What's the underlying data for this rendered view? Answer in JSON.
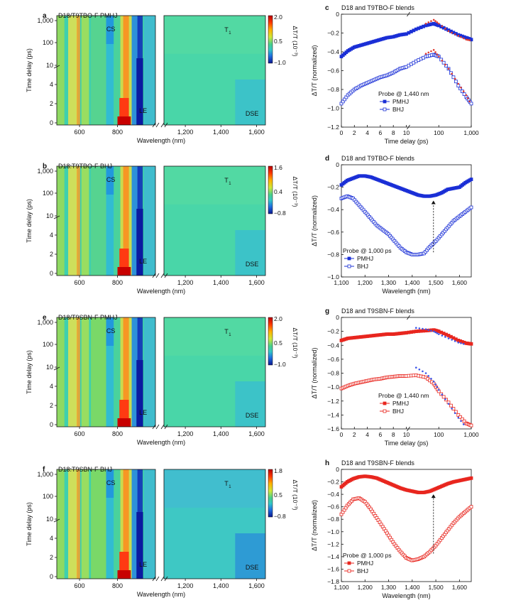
{
  "heatmap_panels": [
    {
      "letter": "a",
      "title": "D18/T9TBO-F PMHJ",
      "xlabel": "Wavelength (nm)",
      "ylabel": "Time delay (ps)",
      "x_ticks_left": [
        "600",
        "800"
      ],
      "x_ticks_right": [
        "1,200",
        "1,400",
        "1,600"
      ],
      "y_ticks_lower": [
        "0",
        "2",
        "4"
      ],
      "y_ticks_upper": [
        "10",
        "100",
        "1,000"
      ],
      "colorbar_label": "ΔT/T (10⁻³)",
      "colorbar_ticks": [
        "2.0",
        "0.5",
        "−1.0"
      ],
      "annotations": {
        "cs": "CS",
        "t1": "T",
        "t1_sub": "1",
        "le": "LE",
        "dse": "DSE"
      }
    },
    {
      "letter": "b",
      "title": "D18:T9TBO-F BHJ",
      "xlabel": "Wavelength (nm)",
      "ylabel": "Time delay (ps)",
      "x_ticks_left": [
        "600",
        "800"
      ],
      "x_ticks_right": [
        "1,200",
        "1,400",
        "1,600"
      ],
      "y_ticks_lower": [
        "0",
        "2",
        "4"
      ],
      "y_ticks_upper": [
        "10",
        "100",
        "1,000"
      ],
      "colorbar_label": "ΔT/T (10⁻³)",
      "colorbar_ticks": [
        "1.6",
        "0.4",
        "−0.8"
      ],
      "annotations": {
        "cs": "CS",
        "t1": "T",
        "t1_sub": "1",
        "le": "LE",
        "dse": "DSE"
      }
    },
    {
      "letter": "e",
      "title": "D18/T9SBN-F PMHJ",
      "xlabel": "Wavelength (nm)",
      "ylabel": "Time delay (ps)",
      "x_ticks_left": [
        "600",
        "800"
      ],
      "x_ticks_right": [
        "1,200",
        "1,400",
        "1,600"
      ],
      "y_ticks_lower": [
        "0",
        "2",
        "4"
      ],
      "y_ticks_upper": [
        "10",
        "100",
        "1,000"
      ],
      "colorbar_label": "ΔT/T (10⁻³)",
      "colorbar_ticks": [
        "2.0",
        "0.5",
        "−1.0"
      ],
      "annotations": {
        "cs": "CS",
        "t1": "T",
        "t1_sub": "1",
        "le": "LE",
        "dse": "DSE"
      }
    },
    {
      "letter": "f",
      "title": "D18:T9SBN-F BHJ",
      "xlabel": "Wavelength (nm)",
      "ylabel": "Time delay (ps)",
      "x_ticks_left": [
        "600",
        "800"
      ],
      "x_ticks_right": [
        "1,200",
        "1,400",
        "1,600"
      ],
      "y_ticks_lower": [
        "0",
        "2",
        "4"
      ],
      "y_ticks_upper": [
        "10",
        "100",
        "1,000"
      ],
      "colorbar_label": "ΔT/T (10⁻³)",
      "colorbar_ticks": [
        "1.8",
        "0.5",
        "−0.8"
      ],
      "annotations": {
        "cs": "CS",
        "t1": "T",
        "t1_sub": "1",
        "le": "LE",
        "dse": "DSE"
      }
    }
  ],
  "chart_data": [
    {
      "letter": "c",
      "type": "line",
      "title": "D18 and T9TBO-F blends",
      "xlabel": "Time delay (ps)",
      "ylabel": "ΔT/T (normalized)",
      "x_ticks_lower": [
        "0",
        "2",
        "4",
        "6",
        "8",
        "10"
      ],
      "x_ticks_upper": [
        "100",
        "1,000"
      ],
      "ylim": [
        -1.2,
        0.0
      ],
      "y_ticks": [
        "0",
        "−0.2",
        "−0.4",
        "−0.6",
        "−0.8",
        "−1.0",
        "−1.2"
      ],
      "legend_title": "Probe @ 1,440 nm",
      "series": [
        {
          "name": "PMHJ",
          "marker": "filled-square",
          "color": "#1a2fd6",
          "x": [
            0,
            1,
            2,
            3,
            4,
            5,
            6,
            7,
            8,
            9,
            10,
            20,
            40,
            70,
            100,
            200,
            400,
            700,
            1000
          ],
          "y": [
            -0.45,
            -0.39,
            -0.35,
            -0.33,
            -0.31,
            -0.29,
            -0.27,
            -0.25,
            -0.24,
            -0.22,
            -0.21,
            -0.16,
            -0.12,
            -0.1,
            -0.12,
            -0.17,
            -0.22,
            -0.25,
            -0.27
          ]
        },
        {
          "name": "BHJ",
          "marker": "open-square",
          "color": "#1a2fd6",
          "x": [
            0,
            1,
            2,
            3,
            4,
            5,
            6,
            7,
            8,
            9,
            10,
            20,
            40,
            70,
            100,
            200,
            400,
            700,
            1000
          ],
          "y": [
            -0.95,
            -0.86,
            -0.8,
            -0.76,
            -0.73,
            -0.7,
            -0.67,
            -0.65,
            -0.62,
            -0.58,
            -0.56,
            -0.5,
            -0.45,
            -0.43,
            -0.45,
            -0.58,
            -0.76,
            -0.88,
            -0.95
          ]
        },
        {
          "name": "",
          "marker": "red-dot",
          "color": "#e23b2e",
          "x": [
            40,
            70,
            100,
            200,
            400,
            700,
            1000
          ],
          "y": [
            -0.1,
            -0.06,
            -0.1,
            -0.18,
            -0.23,
            -0.27,
            -0.28
          ]
        },
        {
          "name": "",
          "marker": "red-dot",
          "color": "#e23b2e",
          "x": [
            40,
            70,
            100,
            200,
            400,
            700,
            1000
          ],
          "y": [
            -0.42,
            -0.38,
            -0.45,
            -0.58,
            -0.74,
            -0.86,
            -0.96
          ]
        }
      ]
    },
    {
      "letter": "d",
      "type": "line",
      "title": "D18 and T9TBO-F blends",
      "xlabel": "Wavelength (nm)",
      "ylabel": "ΔT/T (normalized)",
      "xlim": [
        1100,
        1650
      ],
      "ylim": [
        -1.0,
        0.0
      ],
      "x_ticks": [
        "1,100",
        "1,200",
        "1,300",
        "1,400",
        "1,500",
        "1,600"
      ],
      "y_ticks": [
        "0",
        "−0.2",
        "−0.4",
        "−0.6",
        "−0.8",
        "−1.0"
      ],
      "legend_title": "Probe @ 1,000 ps",
      "series": [
        {
          "name": "PMHJ",
          "marker": "filled-square",
          "color": "#1a2fd6",
          "x": [
            1100,
            1125,
            1150,
            1175,
            1200,
            1225,
            1250,
            1275,
            1300,
            1325,
            1350,
            1375,
            1400,
            1425,
            1450,
            1475,
            1500,
            1525,
            1550,
            1575,
            1600,
            1625,
            1650
          ],
          "y": [
            -0.18,
            -0.14,
            -0.12,
            -0.1,
            -0.1,
            -0.11,
            -0.13,
            -0.15,
            -0.17,
            -0.19,
            -0.21,
            -0.23,
            -0.25,
            -0.27,
            -0.28,
            -0.28,
            -0.27,
            -0.25,
            -0.22,
            -0.21,
            -0.2,
            -0.16,
            -0.13
          ]
        },
        {
          "name": "BHJ",
          "marker": "open-square",
          "color": "#1a2fd6",
          "x": [
            1100,
            1125,
            1150,
            1175,
            1200,
            1225,
            1250,
            1275,
            1300,
            1325,
            1350,
            1375,
            1400,
            1425,
            1450,
            1475,
            1500,
            1525,
            1550,
            1575,
            1600,
            1625,
            1650
          ],
          "y": [
            -0.3,
            -0.28,
            -0.3,
            -0.36,
            -0.42,
            -0.48,
            -0.54,
            -0.58,
            -0.62,
            -0.68,
            -0.74,
            -0.78,
            -0.8,
            -0.8,
            -0.79,
            -0.73,
            -0.68,
            -0.62,
            -0.56,
            -0.5,
            -0.46,
            -0.42,
            -0.38
          ]
        }
      ],
      "arrow": {
        "x": 1490,
        "y_from": -0.78,
        "y_to": -0.32
      }
    },
    {
      "letter": "g",
      "type": "line",
      "title": "D18 and T9SBN-F blends",
      "xlabel": "Time delay (ps)",
      "ylabel": "ΔT/T (normalized)",
      "x_ticks_lower": [
        "0",
        "2",
        "4",
        "6",
        "8",
        "10"
      ],
      "x_ticks_upper": [
        "100",
        "1,000"
      ],
      "ylim": [
        -1.6,
        0.0
      ],
      "y_ticks": [
        "0",
        "−0.2",
        "−0.4",
        "−0.6",
        "−0.8",
        "−1.0",
        "−1.2",
        "−1.4",
        "−1.6"
      ],
      "legend_title": "Probe @ 1,440 nm",
      "series": [
        {
          "name": "PMHJ",
          "marker": "filled-square",
          "color": "#e8261f",
          "x": [
            0,
            1,
            2,
            3,
            4,
            5,
            6,
            7,
            8,
            9,
            10,
            20,
            40,
            70,
            100,
            200,
            400,
            700,
            1000
          ],
          "y": [
            -0.33,
            -0.3,
            -0.29,
            -0.28,
            -0.27,
            -0.26,
            -0.25,
            -0.24,
            -0.24,
            -0.23,
            -0.22,
            -0.2,
            -0.19,
            -0.18,
            -0.2,
            -0.26,
            -0.33,
            -0.37,
            -0.38
          ]
        },
        {
          "name": "BHJ",
          "marker": "open-square",
          "color": "#e8261f",
          "x": [
            0,
            1,
            2,
            3,
            4,
            5,
            6,
            7,
            8,
            9,
            10,
            20,
            40,
            70,
            100,
            200,
            400,
            700,
            1000
          ],
          "y": [
            -1.02,
            -0.98,
            -0.95,
            -0.93,
            -0.91,
            -0.89,
            -0.88,
            -0.86,
            -0.85,
            -0.84,
            -0.84,
            -0.83,
            -0.86,
            -0.95,
            -1.06,
            -1.22,
            -1.4,
            -1.52,
            -1.55
          ]
        },
        {
          "name": "",
          "marker": "blue-dot",
          "color": "#3b55e8",
          "x": [
            20,
            40,
            70,
            100,
            200,
            400,
            700
          ],
          "y": [
            -0.15,
            -0.17,
            -0.2,
            -0.24,
            -0.3,
            -0.36,
            -0.39
          ]
        },
        {
          "name": "",
          "marker": "blue-dot",
          "color": "#3b55e8",
          "x": [
            20,
            40,
            70,
            100,
            200,
            400,
            700
          ],
          "y": [
            -0.72,
            -0.8,
            -0.92,
            -1.04,
            -1.24,
            -1.44,
            -1.58
          ]
        }
      ]
    },
    {
      "letter": "h",
      "type": "line",
      "title": "D18 and T9SBN-F blends",
      "xlabel": "Wavelength (nm)",
      "ylabel": "ΔT/T (normalized)",
      "xlim": [
        1100,
        1650
      ],
      "ylim": [
        -1.8,
        0.0
      ],
      "x_ticks": [
        "1,100",
        "1,200",
        "1,300",
        "1,400",
        "1,500",
        "1,600"
      ],
      "y_ticks": [
        "0",
        "−0.2",
        "−0.4",
        "−0.6",
        "−0.8",
        "−1.0",
        "−1.2",
        "−1.4",
        "−1.6",
        "−1.8"
      ],
      "legend_title": "Probe @ 1,000 ps",
      "series": [
        {
          "name": "PMHJ",
          "marker": "filled-square",
          "color": "#e8261f",
          "x": [
            1100,
            1125,
            1150,
            1175,
            1200,
            1225,
            1250,
            1275,
            1300,
            1325,
            1350,
            1375,
            1400,
            1425,
            1450,
            1475,
            1500,
            1525,
            1550,
            1575,
            1600,
            1625,
            1650
          ],
          "y": [
            -0.28,
            -0.2,
            -0.15,
            -0.12,
            -0.11,
            -0.12,
            -0.14,
            -0.18,
            -0.22,
            -0.26,
            -0.3,
            -0.33,
            -0.35,
            -0.37,
            -0.37,
            -0.35,
            -0.31,
            -0.27,
            -0.23,
            -0.2,
            -0.18,
            -0.16,
            -0.14
          ]
        },
        {
          "name": "BHJ",
          "marker": "open-square",
          "color": "#e8261f",
          "x": [
            1100,
            1125,
            1150,
            1175,
            1200,
            1225,
            1250,
            1275,
            1300,
            1325,
            1350,
            1375,
            1400,
            1425,
            1450,
            1475,
            1500,
            1525,
            1550,
            1575,
            1600,
            1625,
            1650
          ],
          "y": [
            -0.72,
            -0.58,
            -0.48,
            -0.46,
            -0.52,
            -0.64,
            -0.78,
            -0.92,
            -1.06,
            -1.2,
            -1.32,
            -1.42,
            -1.46,
            -1.44,
            -1.4,
            -1.32,
            -1.22,
            -1.1,
            -0.98,
            -0.86,
            -0.76,
            -0.68,
            -0.6
          ]
        }
      ],
      "arrow": {
        "x": 1490,
        "y_from": -1.35,
        "y_to": -0.4
      }
    }
  ],
  "colors": {
    "pmhj_blue": "#1a2fd6",
    "pmhj_red": "#e8261f",
    "fit_red": "#e23b2e",
    "fit_blue": "#3b55e8"
  }
}
